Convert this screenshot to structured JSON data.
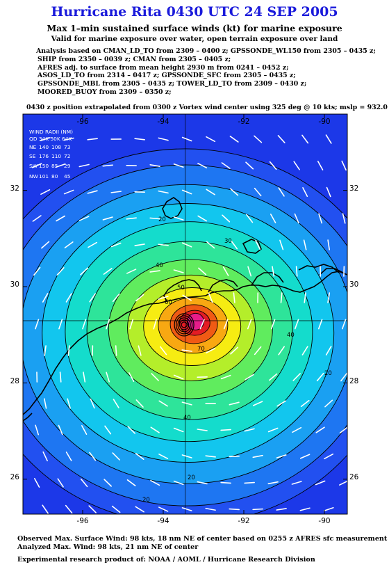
{
  "title": "Hurricane Rita 0430 UTC 24 SEP 2005",
  "subtitle": "Max 1–min sustained surface winds (kt) for marine exposure",
  "subtitle2": "Valid for marine exposure over water, open terrain exposure over land",
  "analysis_lines": [
    "Analysis based on  CMAN_LD_TO from 2309 – 0400 z;  GPSSONDE_WL150 from 2305 – 0435 z;",
    "SHIP from 2350 – 0039 z;  CMAN from 2305 – 0405 z;",
    "AFRES adj. to surface from mean height 2930 m from 0241 – 0452 z;",
    "ASOS_LD_TO from 2314 – 0417 z;  GPSSONDE_SFC from 2305 – 0435 z;",
    "GPSSONDE_MBL from 2305 – 0435 z;  TOWER_LD_TO from 2309 – 0430 z;",
    "MOORED_BUOY from 2309 – 0350 z;"
  ],
  "position_note": "0430 z position extrapolated from 0300 z Vortex wind center using 325 deg @ 10 kts; mslp = 932.0 mb",
  "map": {
    "lon_ticks": [
      "-96",
      "-94",
      "-92",
      "-90"
    ],
    "lat_ticks": [
      "32",
      "30",
      "28",
      "26"
    ],
    "contour_labels": [
      "20",
      "30",
      "40",
      "50",
      "60",
      "70",
      "40",
      "40",
      "20",
      "20",
      "20"
    ],
    "center": {
      "lon": -93.55,
      "lat": 29.25
    },
    "colors": {
      "outer": "#1c38e8",
      "ring": [
        "#2250f0",
        "#1e76f2",
        "#1aa0f2",
        "#12c6ee",
        "#14dccc",
        "#2ee49a",
        "#60ec5e",
        "#b4ee2a",
        "#f6ec12",
        "#f8a812",
        "#f05a14",
        "#e41c24",
        "#e81c8a"
      ],
      "land_line": "#000000",
      "arrow": "#ffffff"
    }
  },
  "wind_radii": {
    "title": "WIND RADII (NM)",
    "header": "QD 34K 50K 64K",
    "rows": [
      {
        "quad": "NE",
        "r34": "140",
        "r50": "108",
        "r64": "73"
      },
      {
        "quad": "SE",
        "r34": "176",
        "r50": "110",
        "r64": "72"
      },
      {
        "quad": "SW",
        "r34": "150",
        "r50": "85",
        "r64": "29"
      },
      {
        "quad": "NW",
        "r34": "101",
        "r50": "80",
        "r64": "45"
      }
    ]
  },
  "footer": {
    "observed": "Observed Max. Surface Wind: 98 kts, 18 nm NE of center based on 0255 z AFRES sfc measurement",
    "analyzed": "Analyzed Max. Wind: 98 kts, 21 nm NE of center",
    "credit": "Experimental research product of:  NOAA / AOML / Hurricane Research Division"
  }
}
